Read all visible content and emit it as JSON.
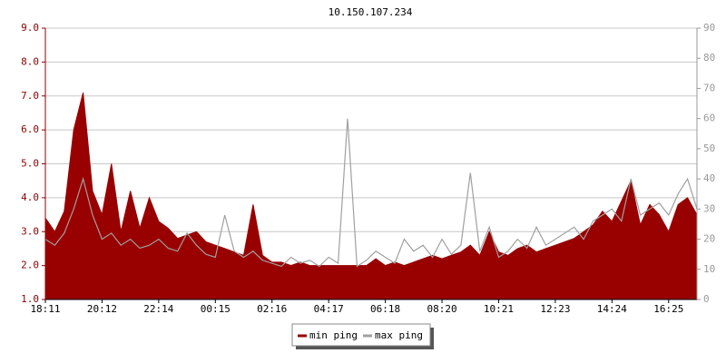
{
  "chart_data": {
    "type": "area-line",
    "title": "10.150.107.234",
    "categories": [
      "18:11",
      null,
      null,
      null,
      null,
      null,
      "20:12",
      null,
      null,
      null,
      null,
      null,
      "22:14",
      null,
      null,
      null,
      null,
      null,
      "00:15",
      null,
      null,
      null,
      null,
      null,
      "02:16",
      null,
      null,
      null,
      null,
      null,
      "04:17",
      null,
      null,
      null,
      null,
      null,
      "06:18",
      null,
      null,
      null,
      null,
      null,
      "08:20",
      null,
      null,
      null,
      null,
      null,
      "10:21",
      null,
      null,
      null,
      null,
      null,
      "12:23",
      null,
      null,
      null,
      null,
      null,
      "14:24",
      null,
      null,
      null,
      null,
      null,
      "16:25",
      null,
      null,
      null
    ],
    "series": [
      {
        "name": "min ping",
        "color": "#990000",
        "values": [
          3.4,
          3.0,
          3.6,
          6.0,
          7.1,
          4.2,
          3.5,
          5.0,
          3.0,
          4.2,
          3.1,
          4.0,
          3.3,
          3.1,
          2.8,
          2.9,
          3.0,
          2.7,
          2.6,
          2.5,
          2.4,
          2.3,
          3.8,
          2.3,
          2.1,
          2.1,
          2.0,
          2.1,
          2.0,
          2.0,
          2.0,
          2.0,
          2.0,
          2.0,
          2.0,
          2.2,
          2.0,
          2.1,
          2.0,
          2.1,
          2.2,
          2.3,
          2.2,
          2.3,
          2.4,
          2.6,
          2.3,
          3.0,
          2.4,
          2.3,
          2.5,
          2.6,
          2.4,
          2.5,
          2.6,
          2.7,
          2.8,
          3.0,
          3.2,
          3.6,
          3.3,
          3.9,
          4.5,
          3.2,
          3.8,
          3.5,
          3.0,
          3.8,
          4.0,
          3.5
        ]
      },
      {
        "name": "max ping",
        "color": "#a0a0a0",
        "axis": "y2",
        "values": [
          20,
          18,
          22,
          30,
          40,
          28,
          20,
          22,
          18,
          20,
          17,
          18,
          20,
          17,
          16,
          22,
          18,
          15,
          14,
          28,
          16,
          14,
          16,
          13,
          12,
          11,
          14,
          12,
          13,
          11,
          14,
          12,
          60,
          11,
          13,
          16,
          14,
          12,
          20,
          16,
          18,
          14,
          20,
          15,
          18,
          42,
          16,
          24,
          14,
          16,
          20,
          17,
          24,
          18,
          20,
          22,
          24,
          20,
          26,
          28,
          30,
          26,
          40,
          28,
          30,
          32,
          28,
          35,
          40,
          30
        ]
      }
    ],
    "ylim": [
      1,
      9
    ],
    "yticks": [
      {
        "value": 1,
        "label": "1.0"
      },
      {
        "value": 2,
        "label": "2.0"
      },
      {
        "value": 3,
        "label": "3.0"
      },
      {
        "value": 4,
        "label": "4.0"
      },
      {
        "value": 5,
        "label": "5.0"
      },
      {
        "value": 6,
        "label": "6.0"
      },
      {
        "value": 7,
        "label": "7.0"
      },
      {
        "value": 8,
        "label": "8.0"
      },
      {
        "value": 9,
        "label": "9.0"
      }
    ],
    "y2lim": [
      0,
      90
    ],
    "y2ticks": [
      0,
      10,
      20,
      30,
      40,
      50,
      60,
      70,
      80,
      90
    ],
    "grid": true
  }
}
